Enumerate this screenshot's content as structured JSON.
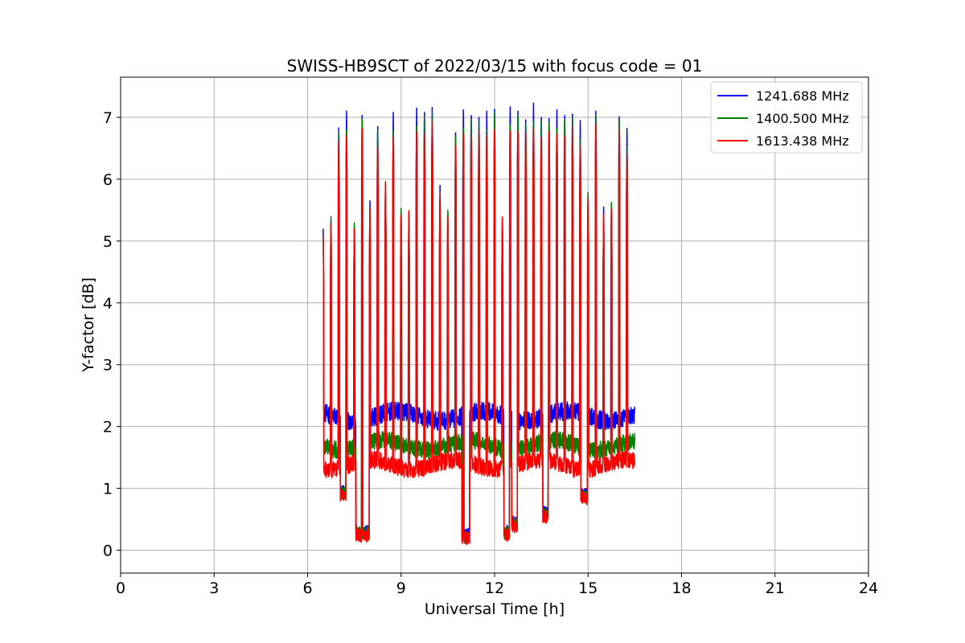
{
  "chart_data": {
    "type": "line",
    "title": "SWISS-HB9SCT of 2022/03/15 with focus code = 01",
    "xlabel": "Universal Time [h]",
    "ylabel": "Y-factor [dB]",
    "xlim": [
      0,
      24
    ],
    "ylim": [
      -0.37,
      7.65
    ],
    "xticks": [
      0,
      3,
      6,
      9,
      12,
      15,
      18,
      21,
      24
    ],
    "yticks": [
      0,
      1,
      2,
      3,
      4,
      5,
      6,
      7
    ],
    "grid": true,
    "legend_position": "top-right",
    "series": [
      {
        "name": "1241.688 MHz",
        "color": "#0000ff",
        "baseline": 2.17,
        "noise": 0.15,
        "peak_offset": 0.0
      },
      {
        "name": "1400.500 MHz",
        "color": "#008000",
        "baseline": 1.7,
        "noise": 0.14,
        "peak_offset": -0.12
      },
      {
        "name": "1613.438 MHz",
        "color": "#ff0000",
        "baseline": 1.38,
        "noise": 0.14,
        "peak_offset": -0.3
      }
    ],
    "data_start": 6.5,
    "data_end": 16.5,
    "peaks": [
      {
        "t": 6.5,
        "v": 5.2
      },
      {
        "t": 6.75,
        "v": 5.47
      },
      {
        "t": 7.0,
        "v": 6.95
      },
      {
        "t": 7.25,
        "v": 7.1
      },
      {
        "t": 7.5,
        "v": 5.37
      },
      {
        "t": 7.75,
        "v": 7.15
      },
      {
        "t": 8.0,
        "v": 5.65
      },
      {
        "t": 8.25,
        "v": 6.97
      },
      {
        "t": 8.5,
        "v": 6.02
      },
      {
        "t": 8.75,
        "v": 7.08
      },
      {
        "t": 9.0,
        "v": 5.6
      },
      {
        "t": 9.25,
        "v": 5.55
      },
      {
        "t": 9.5,
        "v": 7.15
      },
      {
        "t": 9.75,
        "v": 7.2
      },
      {
        "t": 10.0,
        "v": 7.28
      },
      {
        "t": 10.25,
        "v": 5.9
      },
      {
        "t": 10.5,
        "v": 5.57
      },
      {
        "t": 10.75,
        "v": 6.87
      },
      {
        "t": 11.0,
        "v": 7.12
      },
      {
        "t": 11.25,
        "v": 7.15
      },
      {
        "t": 11.5,
        "v": 7.12
      },
      {
        "t": 11.75,
        "v": 7.1
      },
      {
        "t": 12.0,
        "v": 7.25
      },
      {
        "t": 12.25,
        "v": 5.45
      },
      {
        "t": 12.5,
        "v": 7.17
      },
      {
        "t": 12.75,
        "v": 7.22
      },
      {
        "t": 13.0,
        "v": 7.08
      },
      {
        "t": 13.25,
        "v": 7.23
      },
      {
        "t": 13.5,
        "v": 7.12
      },
      {
        "t": 13.75,
        "v": 7.1
      },
      {
        "t": 14.0,
        "v": 7.12
      },
      {
        "t": 14.25,
        "v": 7.15
      },
      {
        "t": 14.5,
        "v": 7.17
      },
      {
        "t": 14.75,
        "v": 6.95
      },
      {
        "t": 15.0,
        "v": 5.86
      },
      {
        "t": 15.25,
        "v": 7.22
      },
      {
        "t": 15.5,
        "v": 5.55
      },
      {
        "t": 15.75,
        "v": 5.7
      },
      {
        "t": 16.0,
        "v": 7.13
      },
      {
        "t": 16.25,
        "v": 6.82
      }
    ],
    "dips": [
      {
        "from": 7.05,
        "to": 7.25,
        "v": 0.95
      },
      {
        "from": 7.55,
        "to": 7.74,
        "v": 0.3
      },
      {
        "from": 7.76,
        "to": 8.0,
        "v": 0.3
      },
      {
        "from": 10.95,
        "to": 11.2,
        "v": 0.25
      },
      {
        "from": 12.3,
        "to": 12.5,
        "v": 0.3
      },
      {
        "from": 12.55,
        "to": 12.75,
        "v": 0.45
      },
      {
        "from": 13.55,
        "to": 13.72,
        "v": 0.6
      },
      {
        "from": 14.75,
        "to": 15.0,
        "v": 0.9
      }
    ]
  }
}
